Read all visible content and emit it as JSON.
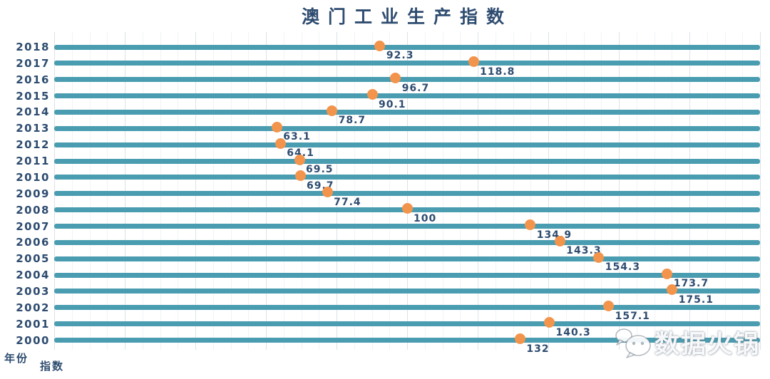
{
  "title": "澳门工业生产指数",
  "axis": {
    "y_title": "年份",
    "x_title": "指数"
  },
  "watermark": {
    "text": "数据火锅",
    "icon": "wechat-chat-bubbles-icon"
  },
  "colors": {
    "bar_teal": "#4a9db0",
    "dot_orange": "#f2944b",
    "text_navy": "#2e4c70",
    "grid_major": "#dde3e7",
    "grid_minor": "#f0f3f5",
    "watermark_outline": "#6e7a8a",
    "background": "#ffffff"
  },
  "chart_data": {
    "type": "scatter",
    "orientation": "horizontal-dot-rows",
    "title": "澳门工业生产指数",
    "xlabel": "指数",
    "ylabel": "年份",
    "xlim": [
      0,
      200
    ],
    "grid": {
      "show": true,
      "major_step": 20,
      "minor_step": 5,
      "direction": "vertical"
    },
    "legend": "none",
    "categories": [
      "2018",
      "2017",
      "2016",
      "2015",
      "2014",
      "2013",
      "2012",
      "2011",
      "2010",
      "2009",
      "2008",
      "2007",
      "2006",
      "2005",
      "2004",
      "2003",
      "2002",
      "2001",
      "2000"
    ],
    "values": [
      92.3,
      118.8,
      96.7,
      90.1,
      78.7,
      63.1,
      64.1,
      69.5,
      69.7,
      77.4,
      100,
      134.9,
      143.3,
      154.3,
      173.7,
      175.1,
      157.1,
      140.3,
      132
    ],
    "labels": [
      "92.3",
      "118.8",
      "96.7",
      "90.1",
      "78.7",
      "63.1",
      "64.1",
      "69.5",
      "69.7",
      "77.4",
      "100",
      "134.9",
      "143.3",
      "154.3",
      "173.7",
      "175.1",
      "157.1",
      "140.3",
      "132"
    ]
  }
}
